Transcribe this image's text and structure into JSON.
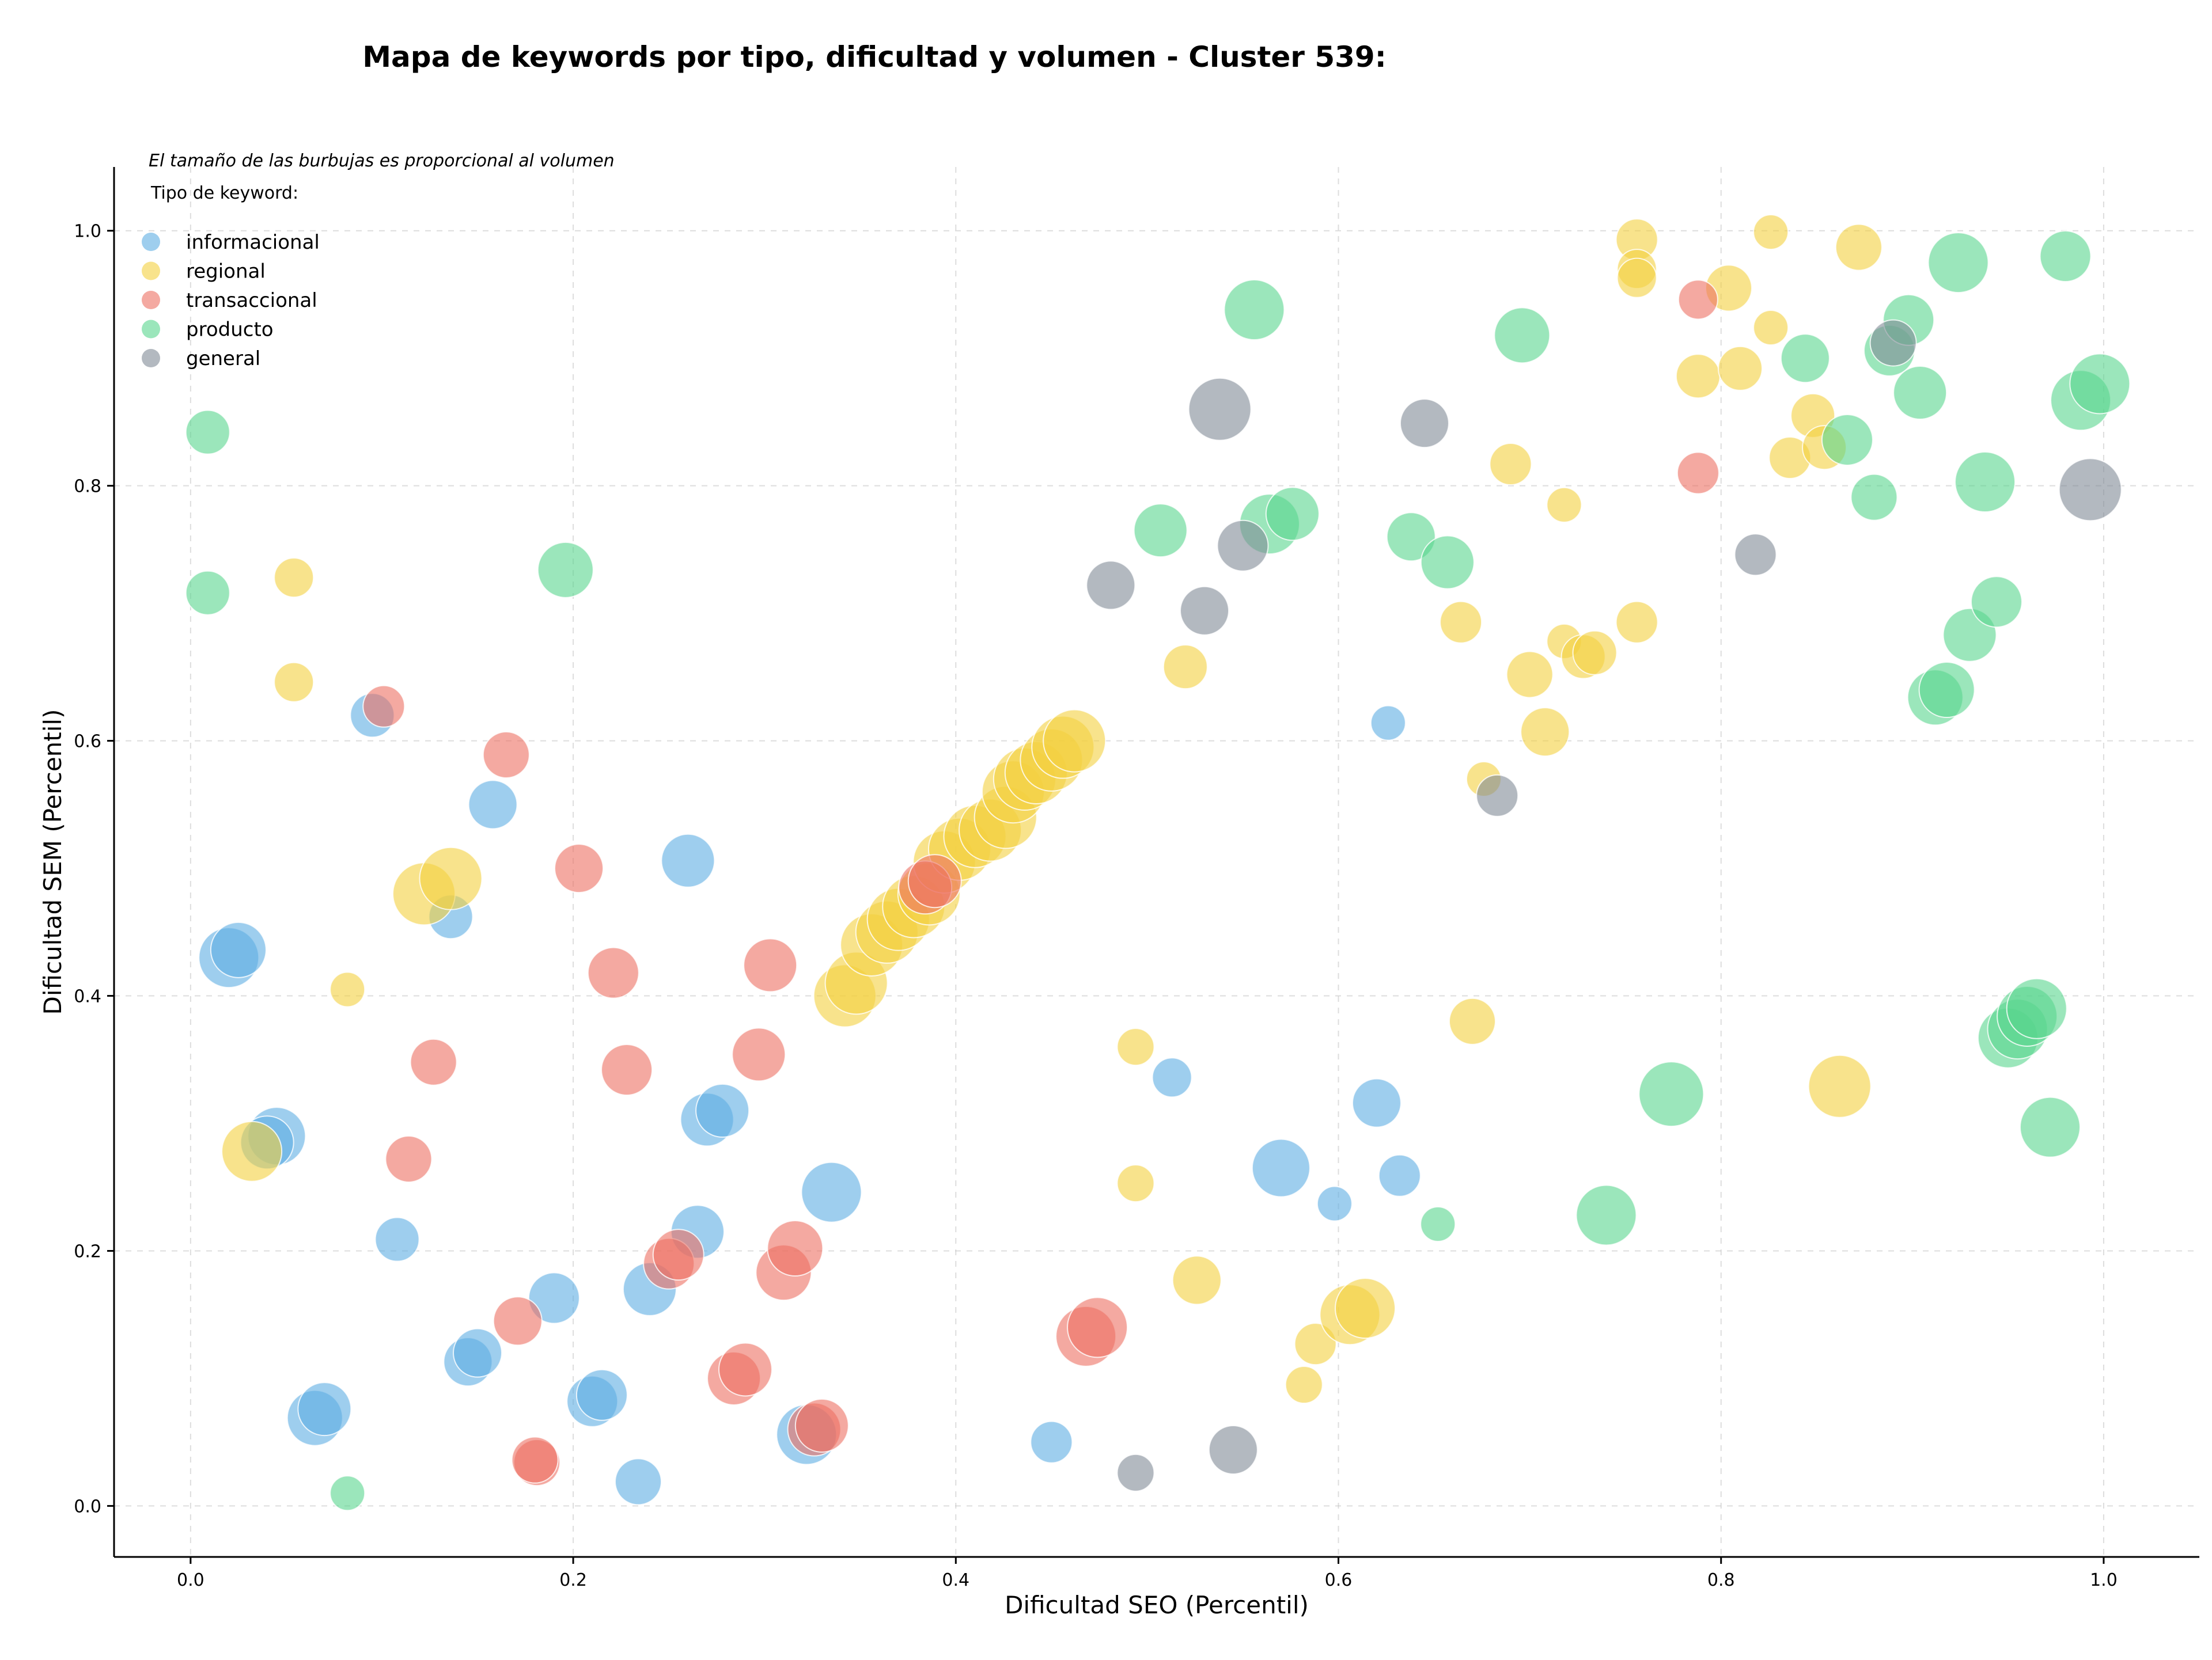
{
  "chart_data": {
    "type": "scatter",
    "title": "Mapa de keywords por tipo, dificultad y volumen - Cluster 539:",
    "xlabel": "Dificultad SEO (Percentil)",
    "ylabel": "Dificultad SEM (Percentil)",
    "xlim": [
      -0.04,
      1.05
    ],
    "ylim": [
      -0.04,
      1.05
    ],
    "xticks": [
      0.0,
      0.2,
      0.4,
      0.6,
      0.8,
      1.0
    ],
    "yticks": [
      0.0,
      0.2,
      0.4,
      0.6,
      0.8,
      1.0
    ],
    "xtick_labels": [
      "0.0",
      "0.2",
      "0.4",
      "0.6",
      "0.8",
      "1.0"
    ],
    "ytick_labels": [
      "0.0",
      "0.2",
      "0.4",
      "0.6",
      "0.8",
      "1.0"
    ],
    "grid": true,
    "note": "El tamaño de las burbujas es proporcional al volumen",
    "legend_title": "Tipo de keyword:",
    "legend_position": "top-left",
    "series": [
      {
        "name": "informacional",
        "color": "#5dade2",
        "points": [
          [
            0.095,
            0.62,
            0.4
          ],
          [
            0.02,
            0.43,
            0.75
          ],
          [
            0.025,
            0.436,
            0.65
          ],
          [
            0.158,
            0.55,
            0.5
          ],
          [
            0.136,
            0.462,
            0.4
          ],
          [
            0.26,
            0.506,
            0.6
          ],
          [
            0.045,
            0.29,
            0.7
          ],
          [
            0.04,
            0.285,
            0.6
          ],
          [
            0.108,
            0.209,
            0.4
          ],
          [
            0.19,
            0.163,
            0.55
          ],
          [
            0.24,
            0.17,
            0.6
          ],
          [
            0.265,
            0.215,
            0.6
          ],
          [
            0.27,
            0.303,
            0.6
          ],
          [
            0.278,
            0.31,
            0.6
          ],
          [
            0.335,
            0.246,
            0.75
          ],
          [
            0.145,
            0.113,
            0.5
          ],
          [
            0.15,
            0.12,
            0.5
          ],
          [
            0.21,
            0.082,
            0.55
          ],
          [
            0.215,
            0.087,
            0.55
          ],
          [
            0.065,
            0.069,
            0.65
          ],
          [
            0.07,
            0.076,
            0.6
          ],
          [
            0.234,
            0.019,
            0.45
          ],
          [
            0.322,
            0.056,
            0.75
          ],
          [
            0.45,
            0.05,
            0.35
          ],
          [
            0.513,
            0.336,
            0.3
          ],
          [
            0.57,
            0.265,
            0.7
          ],
          [
            0.598,
            0.237,
            0.2
          ],
          [
            0.62,
            0.316,
            0.5
          ],
          [
            0.632,
            0.259,
            0.35
          ],
          [
            0.626,
            0.614,
            0.2
          ]
        ]
      },
      {
        "name": "regional",
        "color": "#f4d03f",
        "points": [
          [
            0.054,
            0.728,
            0.3
          ],
          [
            0.054,
            0.646,
            0.3
          ],
          [
            0.082,
            0.405,
            0.2
          ],
          [
            0.122,
            0.48,
            0.8
          ],
          [
            0.136,
            0.492,
            0.8
          ],
          [
            0.032,
            0.278,
            0.75
          ],
          [
            0.342,
            0.4,
            0.8
          ],
          [
            0.348,
            0.41,
            0.8
          ],
          [
            0.356,
            0.44,
            0.8
          ],
          [
            0.364,
            0.45,
            0.8
          ],
          [
            0.37,
            0.46,
            0.8
          ],
          [
            0.378,
            0.47,
            0.8
          ],
          [
            0.386,
            0.48,
            0.8
          ],
          [
            0.394,
            0.505,
            0.8
          ],
          [
            0.402,
            0.515,
            0.8
          ],
          [
            0.41,
            0.525,
            0.8
          ],
          [
            0.418,
            0.53,
            0.8
          ],
          [
            0.426,
            0.54,
            0.8
          ],
          [
            0.43,
            0.56,
            0.8
          ],
          [
            0.436,
            0.57,
            0.8
          ],
          [
            0.442,
            0.575,
            0.8
          ],
          [
            0.45,
            0.585,
            0.8
          ],
          [
            0.456,
            0.595,
            0.8
          ],
          [
            0.462,
            0.6,
            0.8
          ],
          [
            0.52,
            0.658,
            0.4
          ],
          [
            0.494,
            0.36,
            0.25
          ],
          [
            0.494,
            0.253,
            0.25
          ],
          [
            0.526,
            0.177,
            0.5
          ],
          [
            0.582,
            0.095,
            0.25
          ],
          [
            0.588,
            0.127,
            0.35
          ],
          [
            0.606,
            0.15,
            0.75
          ],
          [
            0.614,
            0.155,
            0.75
          ],
          [
            0.664,
            0.693,
            0.35
          ],
          [
            0.67,
            0.38,
            0.45
          ],
          [
            0.676,
            0.57,
            0.2
          ],
          [
            0.69,
            0.817,
            0.35
          ],
          [
            0.7,
            0.652,
            0.45
          ],
          [
            0.708,
            0.607,
            0.5
          ],
          [
            0.718,
            0.785,
            0.2
          ],
          [
            0.718,
            0.678,
            0.2
          ],
          [
            0.728,
            0.666,
            0.4
          ],
          [
            0.734,
            0.669,
            0.4
          ],
          [
            0.756,
            0.993,
            0.35
          ],
          [
            0.756,
            0.97,
            0.3
          ],
          [
            0.756,
            0.963,
            0.3
          ],
          [
            0.756,
            0.693,
            0.35
          ],
          [
            0.788,
            0.886,
            0.4
          ],
          [
            0.804,
            0.955,
            0.45
          ],
          [
            0.81,
            0.892,
            0.4
          ],
          [
            0.826,
            0.999,
            0.2
          ],
          [
            0.826,
            0.924,
            0.2
          ],
          [
            0.836,
            0.822,
            0.35
          ],
          [
            0.848,
            0.855,
            0.4
          ],
          [
            0.854,
            0.83,
            0.4
          ],
          [
            0.872,
            0.987,
            0.45
          ],
          [
            0.862,
            0.329,
            0.8
          ]
        ]
      },
      {
        "name": "transaccional",
        "color": "#ec7063",
        "points": [
          [
            0.101,
            0.627,
            0.35
          ],
          [
            0.165,
            0.589,
            0.45
          ],
          [
            0.203,
            0.5,
            0.5
          ],
          [
            0.221,
            0.418,
            0.55
          ],
          [
            0.228,
            0.342,
            0.55
          ],
          [
            0.127,
            0.348,
            0.45
          ],
          [
            0.114,
            0.272,
            0.45
          ],
          [
            0.171,
            0.145,
            0.5
          ],
          [
            0.181,
            0.034,
            0.45
          ],
          [
            0.18,
            0.036,
            0.45
          ],
          [
            0.25,
            0.19,
            0.55
          ],
          [
            0.255,
            0.197,
            0.55
          ],
          [
            0.284,
            0.1,
            0.6
          ],
          [
            0.29,
            0.107,
            0.6
          ],
          [
            0.297,
            0.354,
            0.6
          ],
          [
            0.303,
            0.424,
            0.6
          ],
          [
            0.31,
            0.183,
            0.65
          ],
          [
            0.316,
            0.202,
            0.65
          ],
          [
            0.326,
            0.06,
            0.6
          ],
          [
            0.33,
            0.063,
            0.6
          ],
          [
            0.384,
            0.485,
            0.6
          ],
          [
            0.389,
            0.49,
            0.6
          ],
          [
            0.468,
            0.133,
            0.75
          ],
          [
            0.474,
            0.14,
            0.75
          ],
          [
            0.788,
            0.946,
            0.3
          ],
          [
            0.788,
            0.81,
            0.35
          ]
        ]
      },
      {
        "name": "producto",
        "color": "#58d68d",
        "points": [
          [
            0.009,
            0.842,
            0.4
          ],
          [
            0.009,
            0.716,
            0.4
          ],
          [
            0.082,
            0.01,
            0.2
          ],
          [
            0.196,
            0.734,
            0.65
          ],
          [
            0.507,
            0.765,
            0.6
          ],
          [
            0.556,
            0.938,
            0.75
          ],
          [
            0.564,
            0.77,
            0.75
          ],
          [
            0.576,
            0.778,
            0.6
          ],
          [
            0.638,
            0.76,
            0.5
          ],
          [
            0.657,
            0.74,
            0.6
          ],
          [
            0.652,
            0.221,
            0.2
          ],
          [
            0.696,
            0.918,
            0.65
          ],
          [
            0.74,
            0.228,
            0.75
          ],
          [
            0.774,
            0.323,
            0.85
          ],
          [
            0.844,
            0.9,
            0.5
          ],
          [
            0.866,
            0.836,
            0.55
          ],
          [
            0.88,
            0.791,
            0.45
          ],
          [
            0.888,
            0.906,
            0.55
          ],
          [
            0.898,
            0.93,
            0.55
          ],
          [
            0.904,
            0.873,
            0.6
          ],
          [
            0.912,
            0.634,
            0.65
          ],
          [
            0.918,
            0.64,
            0.65
          ],
          [
            0.924,
            0.975,
            0.75
          ],
          [
            0.93,
            0.683,
            0.6
          ],
          [
            0.938,
            0.803,
            0.75
          ],
          [
            0.944,
            0.709,
            0.55
          ],
          [
            0.95,
            0.367,
            0.75
          ],
          [
            0.955,
            0.374,
            0.75
          ],
          [
            0.96,
            0.384,
            0.75
          ],
          [
            0.965,
            0.39,
            0.75
          ],
          [
            0.972,
            0.297,
            0.75
          ],
          [
            0.98,
            0.98,
            0.55
          ],
          [
            0.988,
            0.867,
            0.75
          ],
          [
            0.998,
            0.88,
            0.75
          ]
        ]
      },
      {
        "name": "general",
        "color": "#808b96",
        "points": [
          [
            0.481,
            0.722,
            0.5
          ],
          [
            0.53,
            0.702,
            0.5
          ],
          [
            0.538,
            0.86,
            0.8
          ],
          [
            0.55,
            0.753,
            0.55
          ],
          [
            0.545,
            0.044,
            0.5
          ],
          [
            0.494,
            0.026,
            0.25
          ],
          [
            0.645,
            0.849,
            0.5
          ],
          [
            0.683,
            0.557,
            0.35
          ],
          [
            0.818,
            0.746,
            0.35
          ],
          [
            0.89,
            0.912,
            0.45
          ],
          [
            0.993,
            0.797,
            0.8
          ]
        ]
      }
    ]
  }
}
